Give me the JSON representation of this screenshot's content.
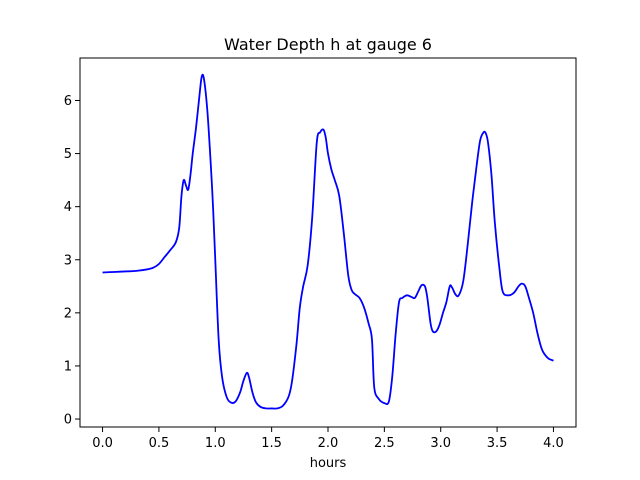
{
  "chart_data": {
    "type": "line",
    "title": "Water Depth h at gauge 6",
    "xlabel": "hours",
    "ylabel": "",
    "xlim": [
      -0.2,
      4.2
    ],
    "ylim": [
      -0.15,
      6.8
    ],
    "xticks": [
      0.0,
      0.5,
      1.0,
      1.5,
      2.0,
      2.5,
      3.0,
      3.5,
      4.0
    ],
    "xtick_labels": [
      "0.0",
      "0.5",
      "1.0",
      "1.5",
      "2.0",
      "2.5",
      "3.0",
      "3.5",
      "4.0"
    ],
    "yticks": [
      0,
      1,
      2,
      3,
      4,
      5,
      6
    ],
    "ytick_labels": [
      "0",
      "1",
      "2",
      "3",
      "4",
      "5",
      "6"
    ],
    "grid": false,
    "series": [
      {
        "name": "",
        "color": "#0000ff",
        "x": [
          0.0,
          0.1,
          0.2,
          0.3,
          0.4,
          0.45,
          0.5,
          0.55,
          0.6,
          0.65,
          0.68,
          0.7,
          0.72,
          0.74,
          0.76,
          0.78,
          0.8,
          0.83,
          0.86,
          0.88,
          0.9,
          0.93,
          0.96,
          0.98,
          1.0,
          1.03,
          1.06,
          1.1,
          1.14,
          1.18,
          1.22,
          1.25,
          1.28,
          1.3,
          1.33,
          1.36,
          1.4,
          1.45,
          1.5,
          1.55,
          1.6,
          1.65,
          1.68,
          1.72,
          1.75,
          1.78,
          1.82,
          1.86,
          1.9,
          1.93,
          1.96,
          1.98,
          2.0,
          2.03,
          2.06,
          2.1,
          2.14,
          2.18,
          2.21,
          2.24,
          2.28,
          2.32,
          2.36,
          2.39,
          2.41,
          2.45,
          2.5,
          2.54,
          2.57,
          2.6,
          2.63,
          2.66,
          2.7,
          2.74,
          2.77,
          2.8,
          2.83,
          2.86,
          2.88,
          2.91,
          2.93,
          2.96,
          2.99,
          3.02,
          3.05,
          3.08,
          3.1,
          3.13,
          3.16,
          3.2,
          3.24,
          3.28,
          3.32,
          3.35,
          3.38,
          3.4,
          3.42,
          3.45,
          3.48,
          3.52,
          3.55,
          3.6,
          3.65,
          3.69,
          3.72,
          3.75,
          3.78,
          3.82,
          3.86,
          3.9,
          3.95,
          4.0
        ],
        "values": [
          2.76,
          2.77,
          2.78,
          2.79,
          2.82,
          2.85,
          2.92,
          3.05,
          3.18,
          3.33,
          3.6,
          4.2,
          4.5,
          4.4,
          4.32,
          4.6,
          5.0,
          5.5,
          6.1,
          6.45,
          6.4,
          5.8,
          4.8,
          4.0,
          3.0,
          1.5,
          0.8,
          0.42,
          0.31,
          0.33,
          0.5,
          0.72,
          0.87,
          0.78,
          0.5,
          0.32,
          0.23,
          0.2,
          0.2,
          0.2,
          0.25,
          0.42,
          0.7,
          1.4,
          2.1,
          2.5,
          2.9,
          3.8,
          5.2,
          5.4,
          5.45,
          5.3,
          5.0,
          4.7,
          4.5,
          4.2,
          3.5,
          2.7,
          2.43,
          2.35,
          2.28,
          2.1,
          1.8,
          1.5,
          0.6,
          0.38,
          0.3,
          0.33,
          0.8,
          1.6,
          2.2,
          2.28,
          2.33,
          2.3,
          2.28,
          2.4,
          2.52,
          2.5,
          2.3,
          1.8,
          1.65,
          1.65,
          1.78,
          2.0,
          2.2,
          2.5,
          2.48,
          2.35,
          2.33,
          2.6,
          3.3,
          4.1,
          4.8,
          5.25,
          5.4,
          5.38,
          5.2,
          4.6,
          3.7,
          2.85,
          2.4,
          2.33,
          2.38,
          2.5,
          2.55,
          2.5,
          2.3,
          2.0,
          1.6,
          1.3,
          1.15,
          1.1
        ]
      }
    ]
  }
}
